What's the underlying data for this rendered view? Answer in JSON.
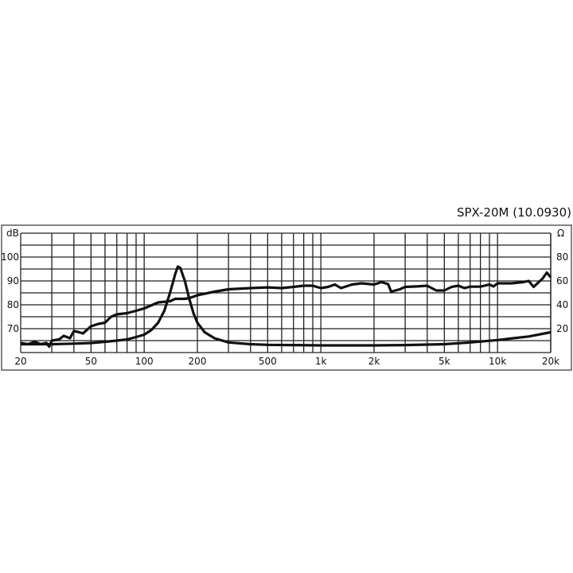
{
  "chart_data": {
    "type": "line",
    "title": "SPX-20M  (10.0930)",
    "x_scale": "log",
    "xlim": [
      20,
      20000
    ],
    "x_ticks": [
      {
        "v": 20,
        "label": "20"
      },
      {
        "v": 50,
        "label": "50"
      },
      {
        "v": 100,
        "label": "100"
      },
      {
        "v": 200,
        "label": "200"
      },
      {
        "v": 500,
        "label": "500"
      },
      {
        "v": 1000,
        "label": "1k"
      },
      {
        "v": 2000,
        "label": "2k"
      },
      {
        "v": 5000,
        "label": "5k"
      },
      {
        "v": 10000,
        "label": "10k"
      },
      {
        "v": 20000,
        "label": "20k"
      }
    ],
    "y_left": {
      "unit": "dB",
      "lim": [
        60,
        110
      ],
      "ticks": [
        70,
        80,
        90,
        100
      ]
    },
    "y_right": {
      "unit": "Ω",
      "lim": [
        0,
        100
      ],
      "ticks": [
        20,
        40,
        60,
        80
      ]
    },
    "grid": true,
    "series": [
      {
        "axis": "left",
        "color": "#111111",
        "points": [
          [
            20,
            64
          ],
          [
            22,
            63.5
          ],
          [
            24,
            64.5
          ],
          [
            26,
            63.5
          ],
          [
            28,
            64
          ],
          [
            29,
            62.5
          ],
          [
            30,
            65
          ],
          [
            33,
            65.5
          ],
          [
            35,
            67
          ],
          [
            38,
            66
          ],
          [
            40,
            69
          ],
          [
            43,
            68.5
          ],
          [
            45,
            68
          ],
          [
            50,
            71
          ],
          [
            55,
            72
          ],
          [
            60,
            72.5
          ],
          [
            65,
            75
          ],
          [
            70,
            76
          ],
          [
            80,
            76.5
          ],
          [
            90,
            77.5
          ],
          [
            100,
            78.5
          ],
          [
            120,
            81
          ],
          [
            140,
            81.5
          ],
          [
            150,
            82.5
          ],
          [
            170,
            82.5
          ],
          [
            180,
            82.8
          ],
          [
            200,
            84
          ],
          [
            250,
            85.5
          ],
          [
            300,
            86.5
          ],
          [
            400,
            87
          ],
          [
            500,
            87.3
          ],
          [
            600,
            87
          ],
          [
            700,
            87.5
          ],
          [
            800,
            88
          ],
          [
            900,
            88
          ],
          [
            1000,
            87
          ],
          [
            1100,
            87.5
          ],
          [
            1200,
            88.5
          ],
          [
            1300,
            87
          ],
          [
            1500,
            88.5
          ],
          [
            1700,
            89
          ],
          [
            2000,
            88.5
          ],
          [
            2200,
            89.5
          ],
          [
            2400,
            88.7
          ],
          [
            2500,
            85.5
          ],
          [
            2800,
            86.5
          ],
          [
            3000,
            87.5
          ],
          [
            3500,
            87.7
          ],
          [
            4000,
            88
          ],
          [
            4500,
            86
          ],
          [
            5000,
            86
          ],
          [
            5500,
            87.5
          ],
          [
            6000,
            88
          ],
          [
            6500,
            87
          ],
          [
            7000,
            87.6
          ],
          [
            8000,
            87.6
          ],
          [
            9000,
            88.5
          ],
          [
            9500,
            87.7
          ],
          [
            10000,
            89
          ],
          [
            12000,
            89
          ],
          [
            14000,
            89.5
          ],
          [
            15000,
            90
          ],
          [
            16000,
            87.5
          ],
          [
            18000,
            91
          ],
          [
            19000,
            93.5
          ],
          [
            20000,
            91.5
          ]
        ]
      },
      {
        "axis": "right",
        "color": "#111111",
        "points": [
          [
            20,
            7
          ],
          [
            30,
            7
          ],
          [
            40,
            7.5
          ],
          [
            50,
            8
          ],
          [
            60,
            9
          ],
          [
            70,
            10
          ],
          [
            80,
            11
          ],
          [
            90,
            13
          ],
          [
            100,
            15
          ],
          [
            110,
            19
          ],
          [
            120,
            25
          ],
          [
            130,
            35
          ],
          [
            140,
            50
          ],
          [
            150,
            66
          ],
          [
            155,
            72
          ],
          [
            160,
            71
          ],
          [
            170,
            60
          ],
          [
            180,
            45
          ],
          [
            190,
            33
          ],
          [
            200,
            25
          ],
          [
            220,
            17
          ],
          [
            250,
            12
          ],
          [
            300,
            8.5
          ],
          [
            400,
            7
          ],
          [
            500,
            6.5
          ],
          [
            700,
            6.3
          ],
          [
            1000,
            6
          ],
          [
            2000,
            6
          ],
          [
            3000,
            6.3
          ],
          [
            5000,
            7
          ],
          [
            7000,
            8.5
          ],
          [
            10000,
            10.5
          ],
          [
            15000,
            13.5
          ],
          [
            20000,
            17
          ]
        ]
      }
    ]
  }
}
